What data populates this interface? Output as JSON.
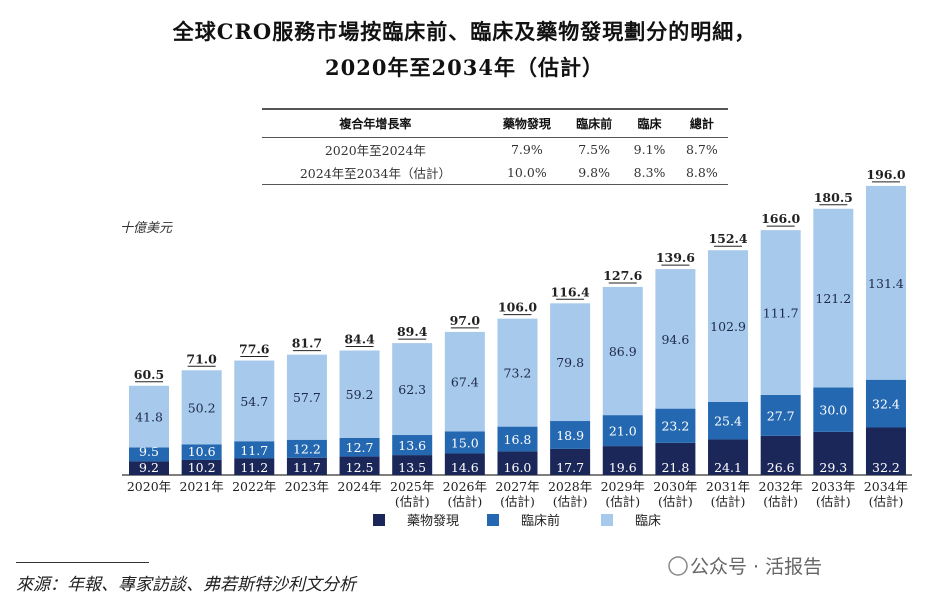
{
  "title_line1": "全球CRO服務市場按臨床前、臨床及藥物發現劃分的明細，",
  "title_line2": "2020年至2034年（估計）",
  "cagr_table": {
    "headers": [
      "複合年增長率",
      "藥物發現",
      "臨床前",
      "臨床",
      "總計"
    ],
    "rows": [
      [
        "2020年至2024年",
        "7.9%",
        "7.5%",
        "9.1%",
        "8.7%"
      ],
      [
        "2024年至2034年（估計）",
        "10.0%",
        "9.8%",
        "8.3%",
        "8.8%"
      ]
    ]
  },
  "source": "來源：年報、專家訪談、弗若斯特沙利文分析",
  "watermark": "公众号 · 活报告",
  "chart_data": {
    "type": "bar",
    "stacked": true,
    "ylabel": "十億美元",
    "categories": [
      [
        "2020年"
      ],
      [
        "2021年"
      ],
      [
        "2022年"
      ],
      [
        "2023年"
      ],
      [
        "2024年"
      ],
      [
        "2025年",
        "(估計)"
      ],
      [
        "2026年",
        "(估計)"
      ],
      [
        "2027年",
        "(估計)"
      ],
      [
        "2028年",
        "(估計)"
      ],
      [
        "2029年",
        "(估計)"
      ],
      [
        "2030年",
        "(估計)"
      ],
      [
        "2031年",
        "(估計)"
      ],
      [
        "2032年",
        "(估計)"
      ],
      [
        "2033年",
        "(估計)"
      ],
      [
        "2034年",
        "(估計)"
      ]
    ],
    "series": [
      {
        "name": "藥物發現",
        "color": "#1c2759",
        "values": [
          9.2,
          10.2,
          11.2,
          11.7,
          12.5,
          13.5,
          14.6,
          16.0,
          17.7,
          19.6,
          21.8,
          24.1,
          26.6,
          29.3,
          32.2
        ]
      },
      {
        "name": "臨床前",
        "color": "#2468b2",
        "values": [
          9.5,
          10.6,
          11.7,
          12.2,
          12.7,
          13.6,
          15.0,
          16.8,
          18.9,
          21.0,
          23.2,
          25.4,
          27.7,
          30.0,
          32.4
        ]
      },
      {
        "name": "臨床",
        "color": "#a6c9ec",
        "values": [
          41.8,
          50.2,
          54.7,
          57.7,
          59.2,
          62.3,
          67.4,
          73.2,
          79.8,
          86.9,
          94.6,
          102.9,
          111.7,
          121.2,
          131.4
        ]
      }
    ],
    "totals": [
      "60.5",
      "71.0",
      "77.6",
      "81.7",
      "84.4",
      "89.4",
      "97.0",
      "106.0",
      "116.4",
      "127.6",
      "139.6",
      "152.4",
      "166.0",
      "180.5",
      "196.0"
    ],
    "legend": "bottom",
    "grid": false
  }
}
